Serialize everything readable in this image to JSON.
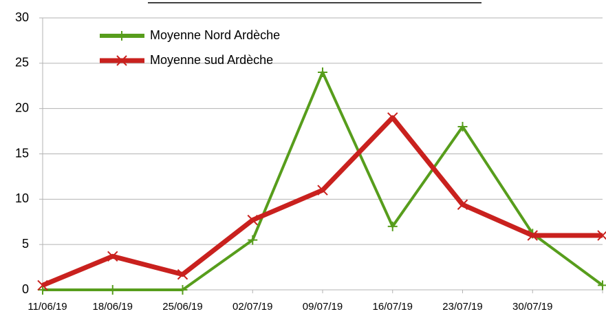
{
  "chart_data": {
    "type": "line",
    "categories": [
      "11/06/19",
      "18/06/19",
      "25/06/19",
      "02/07/19",
      "09/07/19",
      "16/07/19",
      "23/07/19",
      "30/07/19",
      null
    ],
    "series": [
      {
        "name": "Moyenne Nord Ardèche",
        "color": "#579d1c",
        "values": [
          0,
          0,
          0,
          5.5,
          24,
          7,
          18,
          6.2,
          0.5
        ]
      },
      {
        "name": "Moyenne sud Ardèche",
        "color": "#c9211e",
        "values": [
          0.5,
          3.7,
          1.7,
          7.7,
          11,
          19,
          9.4,
          6,
          6
        ]
      }
    ],
    "ylim": [
      0,
      30
    ],
    "yticks": [
      0,
      5,
      10,
      15,
      20,
      25,
      30
    ],
    "grid": true,
    "legend": "upper left"
  }
}
